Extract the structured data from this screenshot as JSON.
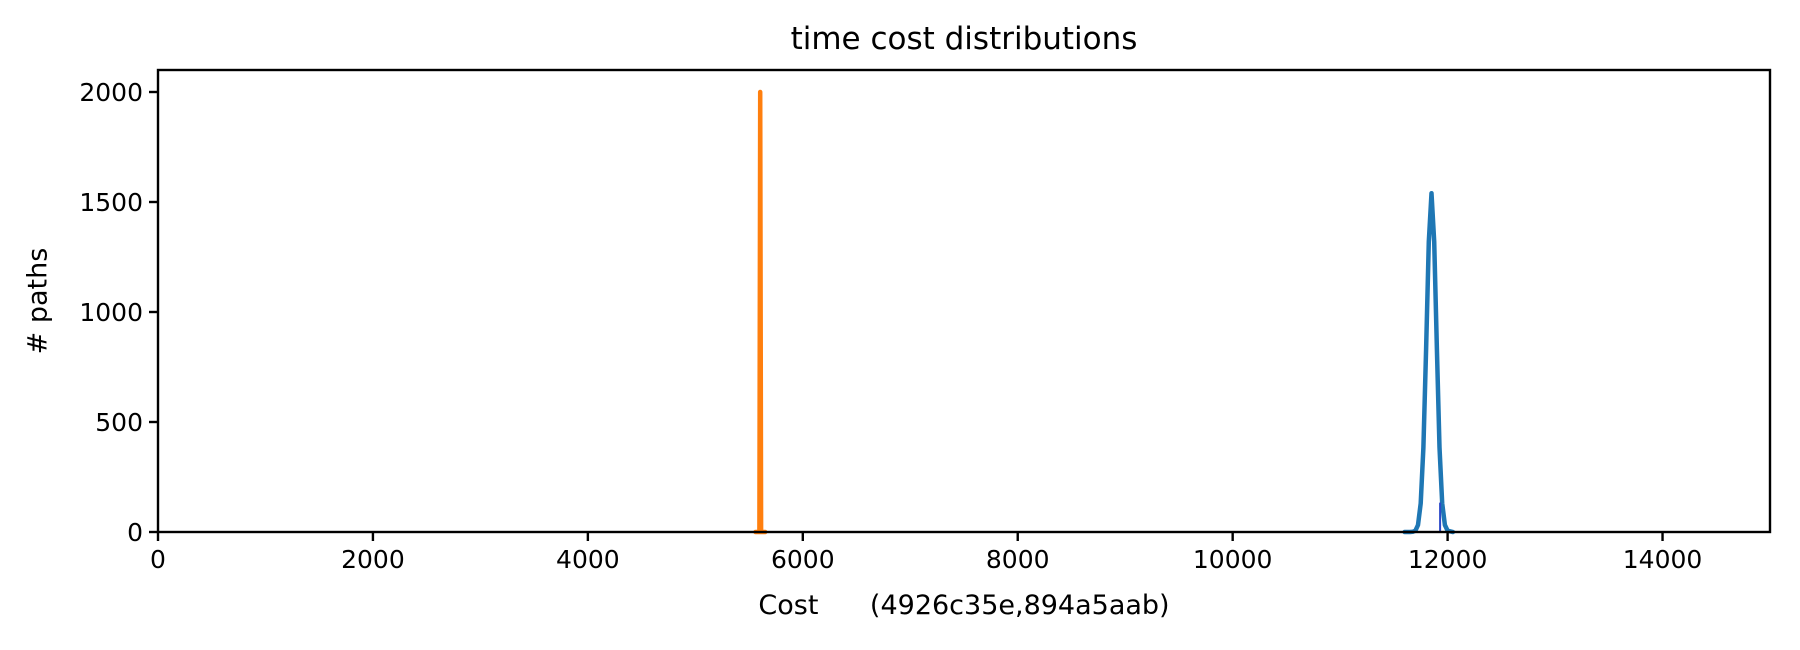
{
  "figure": {
    "background": "#ffffff",
    "text_color": "#000000",
    "spine_color": "#000000"
  },
  "chart_data": {
    "type": "line",
    "title": "time cost distributions",
    "xlabel": "Cost",
    "xlabel_annotation": "(4926c35e,894a5aab)",
    "xlabel_display": "Cost      (4926c35e,894a5aab)",
    "ylabel": "# paths",
    "xlim": [
      0,
      15000
    ],
    "ylim": [
      0,
      2100
    ],
    "xticks": [
      0,
      2000,
      4000,
      6000,
      8000,
      10000,
      12000,
      14000
    ],
    "yticks": [
      0,
      500,
      1000,
      1500,
      2000
    ],
    "grid": false,
    "legend": false,
    "series": [
      {
        "name": "distribution-a-spike",
        "color": "#ff7f0e",
        "linewidth": 4.5,
        "points": [
          [
            5560,
            0
          ],
          [
            5596,
            0
          ],
          [
            5604,
            2000
          ],
          [
            5612,
            0
          ],
          [
            5650,
            0
          ]
        ]
      },
      {
        "name": "distribution-b-peak",
        "color": "#1f77b4",
        "linewidth": 4.5,
        "points": [
          [
            11600,
            0
          ],
          [
            11650,
            0
          ],
          [
            11675,
            1
          ],
          [
            11700,
            6
          ],
          [
            11725,
            32
          ],
          [
            11750,
            130
          ],
          [
            11775,
            384
          ],
          [
            11800,
            831
          ],
          [
            11825,
            1320
          ],
          [
            11850,
            1540
          ],
          [
            11875,
            1320
          ],
          [
            11900,
            831
          ],
          [
            11925,
            384
          ],
          [
            11950,
            130
          ],
          [
            11975,
            32
          ],
          [
            12000,
            6
          ],
          [
            12050,
            0
          ]
        ]
      },
      {
        "name": "distribution-b-narrow-subspike",
        "color": "#2b48c9",
        "linewidth": 2,
        "points": [
          [
            11930,
            0
          ],
          [
            11930,
            130
          ]
        ]
      }
    ]
  }
}
